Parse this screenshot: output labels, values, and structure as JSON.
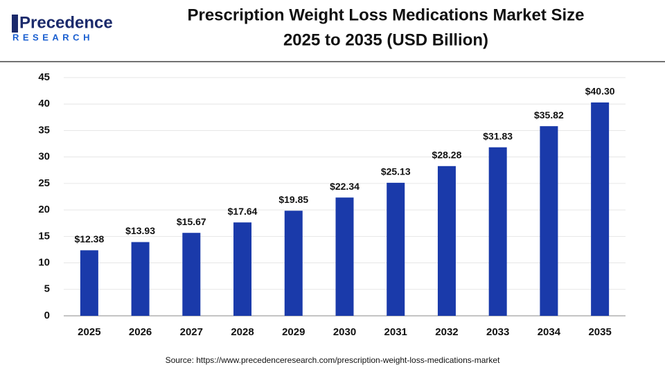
{
  "logo": {
    "name": "Precedence",
    "tagline": "RESEARCH"
  },
  "chart_data": {
    "type": "bar",
    "title": "Prescription Weight Loss Medications Market Size",
    "subtitle": "2025 to 2035 (USD Billion)",
    "categories": [
      "2025",
      "2026",
      "2027",
      "2028",
      "2029",
      "2030",
      "2031",
      "2032",
      "2033",
      "2034",
      "2035"
    ],
    "values": [
      12.38,
      13.93,
      15.67,
      17.64,
      19.85,
      22.34,
      25.13,
      28.28,
      31.83,
      35.82,
      40.3
    ],
    "value_labels": [
      "$12.38",
      "$13.93",
      "$15.67",
      "$17.64",
      "$19.85",
      "$22.34",
      "$25.13",
      "$28.28",
      "$31.83",
      "$35.82",
      "$40.30"
    ],
    "color": "#1a3aaa",
    "ylim": [
      0,
      45
    ],
    "yticks": [
      0,
      5,
      10,
      15,
      20,
      25,
      30,
      35,
      40,
      45
    ],
    "grid": true,
    "source": "Source: https://www.precedenceresearch.com/prescription-weight-loss-medications-market"
  }
}
